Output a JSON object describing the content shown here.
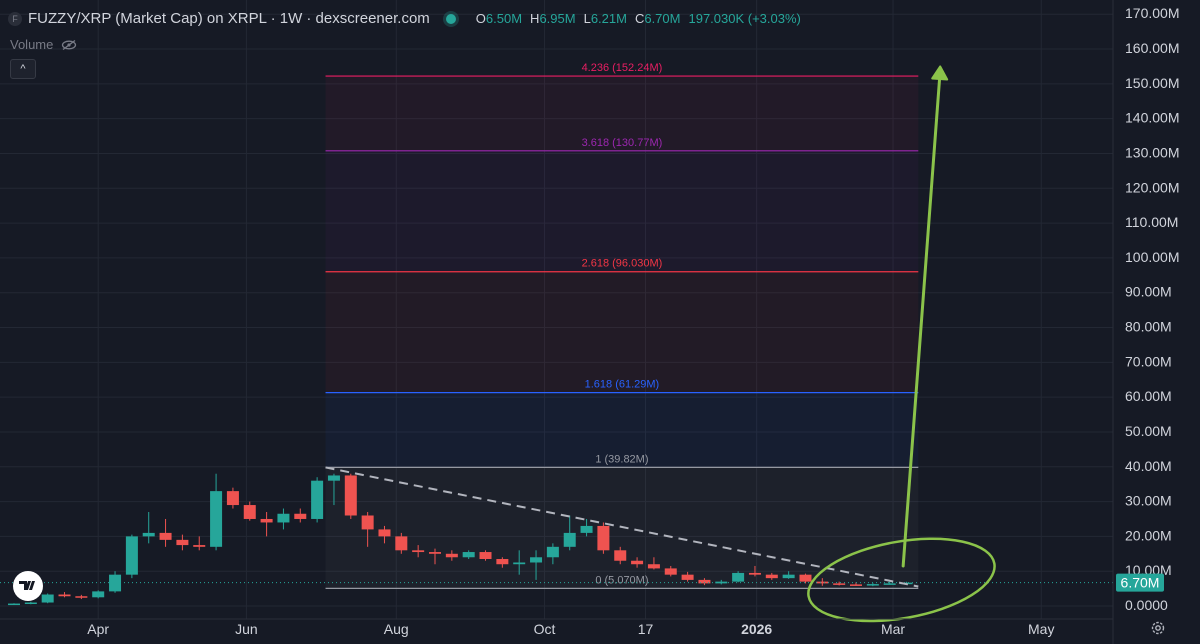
{
  "header": {
    "coin_letter": "F",
    "title": "FUZZY/XRP (Market Cap) on XRPL · 1W · dexscreener.com",
    "ohlc": [
      {
        "k": "O",
        "v": "6.50M"
      },
      {
        "k": "H",
        "v": "6.95M"
      },
      {
        "k": "L",
        "v": "6.21M"
      },
      {
        "k": "C",
        "v": "6.70M"
      },
      {
        "k": "",
        "v": "197.030K (+3.03%)"
      }
    ],
    "volume_label": "Volume",
    "collapse_label": "^"
  },
  "colors": {
    "background": "#161a25",
    "up": "#26a69a",
    "down": "#ef5350",
    "grid": "#232834",
    "annotation": "#8bc34a",
    "price_tag": "#26a69a"
  },
  "chart_data": {
    "type": "candlestick",
    "ylim": [
      0,
      170
    ],
    "y_unit": "M",
    "y_ticks": [
      "0.0000",
      "10.00M",
      "20.00M",
      "30.00M",
      "40.00M",
      "50.00M",
      "60.00M",
      "70.00M",
      "80.00M",
      "90.00M",
      "100.00M",
      "110.00M",
      "120.00M",
      "130.00M",
      "140.00M",
      "150.00M",
      "160.00M",
      "170.00M"
    ],
    "y_tick_values": [
      0,
      10,
      20,
      30,
      40,
      50,
      60,
      70,
      80,
      90,
      100,
      110,
      120,
      130,
      140,
      150,
      160,
      170
    ],
    "x_ticks": [
      {
        "label": "Apr",
        "week": 5,
        "bold": false
      },
      {
        "label": "Jun",
        "week": 13.8,
        "bold": false
      },
      {
        "label": "Aug",
        "week": 22.7,
        "bold": false
      },
      {
        "label": "Oct",
        "week": 31.5,
        "bold": false
      },
      {
        "label": "17",
        "week": 37.5,
        "bold": false
      },
      {
        "label": "2026",
        "week": 44.1,
        "bold": true
      },
      {
        "label": "Mar",
        "week": 52.2,
        "bold": false
      },
      {
        "label": "May",
        "week": 61,
        "bold": false
      }
    ],
    "candles": [
      {
        "o": 0.5,
        "h": 0.8,
        "l": 0.3,
        "c": 0.7
      },
      {
        "o": 0.7,
        "h": 1.2,
        "l": 0.5,
        "c": 1.0
      },
      {
        "o": 1.0,
        "h": 3.6,
        "l": 0.8,
        "c": 3.3
      },
      {
        "o": 3.3,
        "h": 4.0,
        "l": 2.5,
        "c": 2.8
      },
      {
        "o": 2.8,
        "h": 3.2,
        "l": 2.0,
        "c": 2.5
      },
      {
        "o": 2.5,
        "h": 4.5,
        "l": 2.2,
        "c": 4.2
      },
      {
        "o": 4.2,
        "h": 10.0,
        "l": 3.8,
        "c": 9.0
      },
      {
        "o": 9.0,
        "h": 20.5,
        "l": 8.0,
        "c": 20.0
      },
      {
        "o": 20.0,
        "h": 27.0,
        "l": 18.0,
        "c": 21.0
      },
      {
        "o": 21.0,
        "h": 25.0,
        "l": 17.0,
        "c": 19.0
      },
      {
        "o": 19.0,
        "h": 20.5,
        "l": 16.0,
        "c": 17.5
      },
      {
        "o": 17.5,
        "h": 20.0,
        "l": 16.0,
        "c": 17.0
      },
      {
        "o": 17.0,
        "h": 38.0,
        "l": 16.0,
        "c": 33.0
      },
      {
        "o": 33.0,
        "h": 34.0,
        "l": 28.0,
        "c": 29.0
      },
      {
        "o": 29.0,
        "h": 30.0,
        "l": 24.5,
        "c": 25.0
      },
      {
        "o": 25.0,
        "h": 27.0,
        "l": 20.0,
        "c": 24.0
      },
      {
        "o": 24.0,
        "h": 28.0,
        "l": 22.0,
        "c": 26.5
      },
      {
        "o": 26.5,
        "h": 28.0,
        "l": 24.0,
        "c": 25.0
      },
      {
        "o": 25.0,
        "h": 37.0,
        "l": 24.0,
        "c": 36.0
      },
      {
        "o": 36.0,
        "h": 38.0,
        "l": 29.0,
        "c": 37.5
      },
      {
        "o": 37.5,
        "h": 38.0,
        "l": 25.0,
        "c": 26.0
      },
      {
        "o": 26.0,
        "h": 27.0,
        "l": 17.0,
        "c": 22.0
      },
      {
        "o": 22.0,
        "h": 23.0,
        "l": 18.0,
        "c": 20.0
      },
      {
        "o": 20.0,
        "h": 21.0,
        "l": 15.0,
        "c": 16.0
      },
      {
        "o": 16.0,
        "h": 17.5,
        "l": 14.0,
        "c": 15.5
      },
      {
        "o": 15.5,
        "h": 16.5,
        "l": 12.0,
        "c": 15.0
      },
      {
        "o": 15.0,
        "h": 16.0,
        "l": 13.0,
        "c": 14.0
      },
      {
        "o": 14.0,
        "h": 16.0,
        "l": 13.5,
        "c": 15.5
      },
      {
        "o": 15.5,
        "h": 16.0,
        "l": 13.0,
        "c": 13.5
      },
      {
        "o": 13.5,
        "h": 14.0,
        "l": 11.0,
        "c": 12.0
      },
      {
        "o": 12.0,
        "h": 16.0,
        "l": 9.0,
        "c": 12.5
      },
      {
        "o": 12.5,
        "h": 16.0,
        "l": 7.5,
        "c": 14.0
      },
      {
        "o": 14.0,
        "h": 18.0,
        "l": 12.0,
        "c": 17.0
      },
      {
        "o": 17.0,
        "h": 26.0,
        "l": 16.0,
        "c": 21.0
      },
      {
        "o": 21.0,
        "h": 25.0,
        "l": 20.0,
        "c": 23.0
      },
      {
        "o": 23.0,
        "h": 24.0,
        "l": 15.0,
        "c": 16.0
      },
      {
        "o": 16.0,
        "h": 17.0,
        "l": 12.0,
        "c": 13.0
      },
      {
        "o": 13.0,
        "h": 14.0,
        "l": 11.0,
        "c": 12.0
      },
      {
        "o": 12.0,
        "h": 14.0,
        "l": 10.5,
        "c": 10.8
      },
      {
        "o": 10.8,
        "h": 11.5,
        "l": 8.5,
        "c": 9.0
      },
      {
        "o": 9.0,
        "h": 9.8,
        "l": 7.0,
        "c": 7.5
      },
      {
        "o": 7.5,
        "h": 8.0,
        "l": 6.0,
        "c": 6.5
      },
      {
        "o": 6.5,
        "h": 7.5,
        "l": 6.2,
        "c": 7.0
      },
      {
        "o": 7.0,
        "h": 10.0,
        "l": 6.8,
        "c": 9.5
      },
      {
        "o": 9.5,
        "h": 11.5,
        "l": 8.5,
        "c": 9.0
      },
      {
        "o": 9.0,
        "h": 9.5,
        "l": 7.5,
        "c": 8.0
      },
      {
        "o": 8.0,
        "h": 10.0,
        "l": 7.8,
        "c": 9.0
      },
      {
        "o": 9.0,
        "h": 9.3,
        "l": 6.5,
        "c": 7.0
      },
      {
        "o": 7.0,
        "h": 8.0,
        "l": 5.8,
        "c": 6.5
      },
      {
        "o": 6.5,
        "h": 7.0,
        "l": 5.9,
        "c": 6.2
      },
      {
        "o": 6.2,
        "h": 6.8,
        "l": 5.8,
        "c": 6.0
      },
      {
        "o": 6.0,
        "h": 6.6,
        "l": 5.7,
        "c": 6.3
      },
      {
        "o": 6.3,
        "h": 6.95,
        "l": 6.21,
        "c": 6.5
      },
      {
        "o": 6.5,
        "h": 6.95,
        "l": 6.21,
        "c": 6.7
      }
    ],
    "fib_levels": [
      {
        "label": "0 (5.070M)",
        "value": 5.07,
        "color": "#9598a1"
      },
      {
        "label": "1 (39.82M)",
        "value": 39.82,
        "color": "#9598a1"
      },
      {
        "label": "1.618 (61.29M)",
        "value": 61.29,
        "color": "#2962ff"
      },
      {
        "label": "2.618 (96.030M)",
        "value": 96.03,
        "color": "#f23645"
      },
      {
        "label": "3.618 (130.77M)",
        "value": 130.77,
        "color": "#9c27b0"
      },
      {
        "label": "4.236 (152.24M)",
        "value": 152.24,
        "color": "#e91e63"
      }
    ],
    "fib_range_weeks": [
      18.5,
      53.7
    ],
    "trendline": {
      "from": {
        "week": 18.5,
        "value": 39.8
      },
      "to": {
        "week": 53.7,
        "value": 5.6
      }
    },
    "arrow": {
      "from": {
        "week": 52.8,
        "value": 11.5
      },
      "to": {
        "week": 55.0,
        "value": 155.0
      }
    },
    "ellipse": {
      "week": 52.7,
      "value": 7.5,
      "rx_weeks": 5.6,
      "ry_value": 11
    },
    "last_price_label": "6.70M",
    "last_price": 6.7
  }
}
